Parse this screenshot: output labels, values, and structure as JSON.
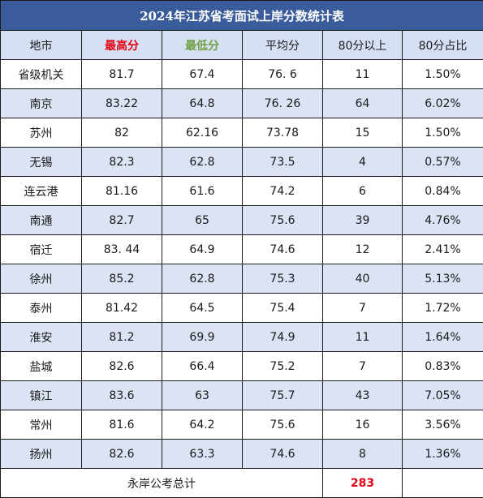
{
  "title": "2024年江苏省考面试上岸分数统计表",
  "headers": [
    "地市",
    "最高分",
    "最低分",
    "平均分",
    "80分以上",
    "80分占比"
  ],
  "rows": [
    [
      "省级机关",
      "81.7",
      "67.4",
      "76. 6",
      "11",
      "1.50%"
    ],
    [
      "南京",
      "83.22",
      "64.8",
      "76. 26",
      "64",
      "6.02%"
    ],
    [
      "苏州",
      "82",
      "62.16",
      "73.78",
      "15",
      "1.50%"
    ],
    [
      "无锡",
      "82.3",
      "62.8",
      "73.5",
      "4",
      "0.57%"
    ],
    [
      "连云港",
      "81.16",
      "61.6",
      "74.2",
      "6",
      "0.84%"
    ],
    [
      "南通",
      "82.7",
      "65",
      "75.6",
      "39",
      "4.76%"
    ],
    [
      "宿迁",
      "83. 44",
      "64.9",
      "74.6",
      "12",
      "2.41%"
    ],
    [
      "徐州",
      "85.2",
      "62.8",
      "75.3",
      "40",
      "5.13%"
    ],
    [
      "泰州",
      "81.42",
      "64.5",
      "75.4",
      "7",
      "1.72%"
    ],
    [
      "淮安",
      "81.2",
      "69.9",
      "74.9",
      "11",
      "1.64%"
    ],
    [
      "盐城",
      "82.6",
      "66.4",
      "75.2",
      "7",
      "0.83%"
    ],
    [
      "镇江",
      "83.6",
      "63",
      "75.7",
      "43",
      "7.05%"
    ],
    [
      "常州",
      "81.6",
      "64.2",
      "75.6",
      "16",
      "3.56%"
    ],
    [
      "扬州",
      "82.6",
      "63.3",
      "74.6",
      "8",
      "1.36%"
    ]
  ],
  "total": {
    "label": "永岸公考总计",
    "value": "283"
  },
  "colors": {
    "title_bg": "#3a5c9a",
    "header_bg": "#d6e0f5",
    "shaded_row_bg": "#dbe3f4",
    "highlight_red": "#e60012",
    "highlight_green": "#70a040"
  }
}
